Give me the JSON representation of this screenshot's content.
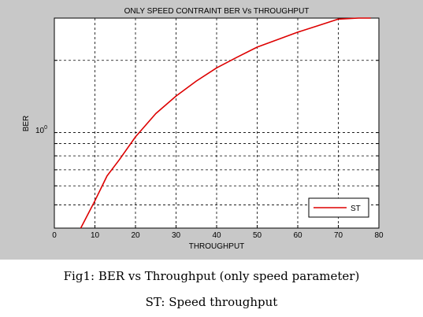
{
  "chart_data": {
    "type": "line",
    "title": "ONLY SPEED CONTRAINT BER Vs THROUGHPUT",
    "xlabel": "THROUGHPUT",
    "ylabel": "BER",
    "xlim": [
      0,
      80
    ],
    "x_ticks": [
      0,
      10,
      20,
      30,
      40,
      50,
      60,
      70,
      80
    ],
    "y_scale": "log",
    "ylim": [
      0.4,
      3.0
    ],
    "y_tick_label": {
      "value": 1,
      "base": "10",
      "exponent": "0"
    },
    "y_gridlines": [
      0.5,
      0.6,
      0.7,
      0.8,
      0.9,
      1,
      2,
      3
    ],
    "grid": true,
    "legend": "bottom-right",
    "series": [
      {
        "name": "ST",
        "color": "#dd0000",
        "x": [
          6.5,
          10,
          13,
          16,
          20,
          25,
          30,
          35,
          40,
          45,
          50,
          55,
          60,
          65,
          70,
          75,
          78
        ],
        "y": [
          0.4,
          0.52,
          0.66,
          0.77,
          0.96,
          1.2,
          1.42,
          1.64,
          1.86,
          2.06,
          2.27,
          2.44,
          2.62,
          2.79,
          2.97,
          3.12,
          3.22
        ]
      }
    ]
  },
  "caption": {
    "line1": "Fig1: BER vs Throughput (only speed parameter)",
    "line2": "ST: Speed throughput"
  }
}
